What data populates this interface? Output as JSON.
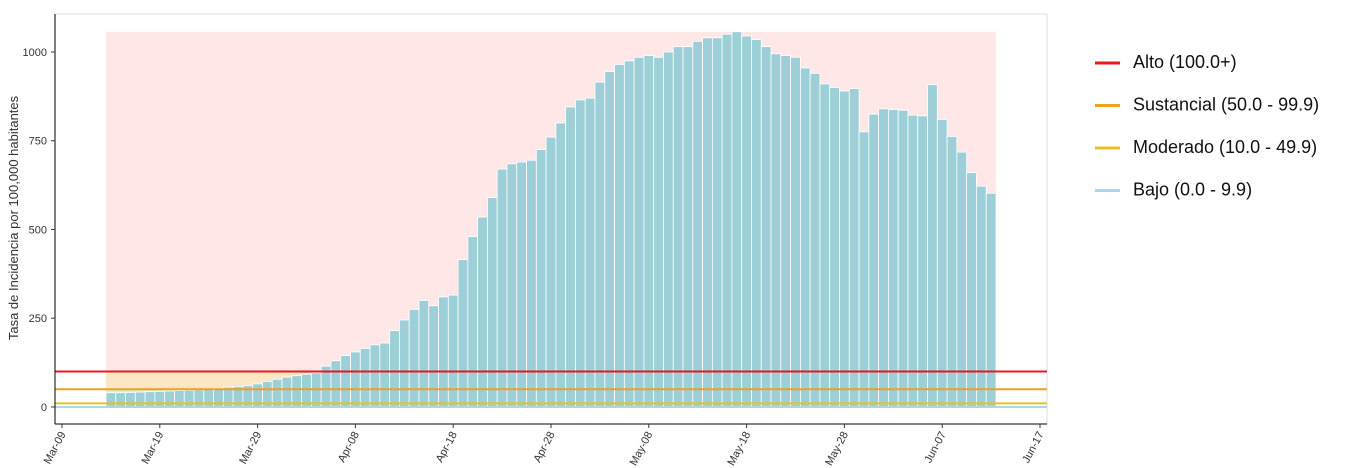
{
  "chart_data": {
    "type": "bar",
    "y_label": "Tasa de Incidencia por 100,000 habitantes",
    "ylim": [
      -48,
      1107
    ],
    "yticks": [
      0,
      250,
      500,
      750,
      1000
    ],
    "xlim": [
      "Mar-09",
      "Jun-17"
    ],
    "xticks": [
      "Mar-09",
      "Mar-19",
      "Mar-29",
      "Apr-08",
      "Apr-18",
      "Apr-28",
      "May-08",
      "May-18",
      "May-28",
      "Jun-07",
      "Jun-17"
    ],
    "color": "#9ccfd7",
    "x": [
      "Mar-14",
      "Mar-15",
      "Mar-16",
      "Mar-17",
      "Mar-18",
      "Mar-19",
      "Mar-20",
      "Mar-21",
      "Mar-22",
      "Mar-23",
      "Mar-24",
      "Mar-25",
      "Mar-26",
      "Mar-27",
      "Mar-28",
      "Mar-29",
      "Mar-30",
      "Mar-31",
      "Apr-01",
      "Apr-02",
      "Apr-03",
      "Apr-04",
      "Apr-05",
      "Apr-06",
      "Apr-07",
      "Apr-08",
      "Apr-09",
      "Apr-10",
      "Apr-11",
      "Apr-12",
      "Apr-13",
      "Apr-14",
      "Apr-15",
      "Apr-16",
      "Apr-17",
      "Apr-18",
      "Apr-19",
      "Apr-20",
      "Apr-21",
      "Apr-22",
      "Apr-23",
      "Apr-24",
      "Apr-25",
      "Apr-26",
      "Apr-27",
      "Apr-28",
      "Apr-29",
      "Apr-30",
      "May-01",
      "May-02",
      "May-03",
      "May-04",
      "May-05",
      "May-06",
      "May-07",
      "May-08",
      "May-09",
      "May-10",
      "May-11",
      "May-12",
      "May-13",
      "May-14",
      "May-15",
      "May-16",
      "May-17",
      "May-18",
      "May-19",
      "May-20",
      "May-21",
      "May-22",
      "May-23",
      "May-24",
      "May-25",
      "May-26",
      "May-27",
      "May-28",
      "May-29",
      "May-30",
      "May-31",
      "Jun-01",
      "Jun-02",
      "Jun-03",
      "Jun-04",
      "Jun-05",
      "Jun-06",
      "Jun-07",
      "Jun-08",
      "Jun-09",
      "Jun-10",
      "Jun-11",
      "Jun-12"
    ],
    "values": [
      40,
      40,
      41,
      42,
      43,
      44,
      45,
      46,
      47,
      48,
      50,
      53,
      56,
      58,
      60,
      65,
      72,
      78,
      84,
      88,
      92,
      96,
      115,
      130,
      145,
      155,
      165,
      175,
      180,
      215,
      245,
      275,
      300,
      285,
      310,
      315,
      415,
      480,
      535,
      590,
      670,
      685,
      690,
      695,
      725,
      760,
      800,
      845,
      865,
      870,
      915,
      945,
      965,
      975,
      985,
      990,
      985,
      1000,
      1015,
      1015,
      1030,
      1040,
      1040,
      1050,
      1057,
      1045,
      1035,
      1015,
      995,
      990,
      985,
      955,
      940,
      910,
      900,
      890,
      897,
      775,
      825,
      840,
      838,
      836,
      822,
      820,
      908,
      810,
      762,
      718,
      660,
      622,
      602
    ],
    "levels": [
      {
        "name": "Alto (100.0+)",
        "color": "#e41a1c",
        "band_color": "#ffe3e3",
        "threshold": 100
      },
      {
        "name": "Sustancial (50.0 - 99.9)",
        "color": "#f0a020",
        "band_color": "#fde2b8",
        "threshold": 50
      },
      {
        "name": "Moderado (10.0 - 49.9)",
        "color": "#e8c020",
        "band_color": "#c8f0c8",
        "threshold": 10
      },
      {
        "name": "Bajo (0.0 - 9.9)",
        "color": "#a8d8e6",
        "band_color": "#cdeef3",
        "threshold": 0
      }
    ]
  }
}
